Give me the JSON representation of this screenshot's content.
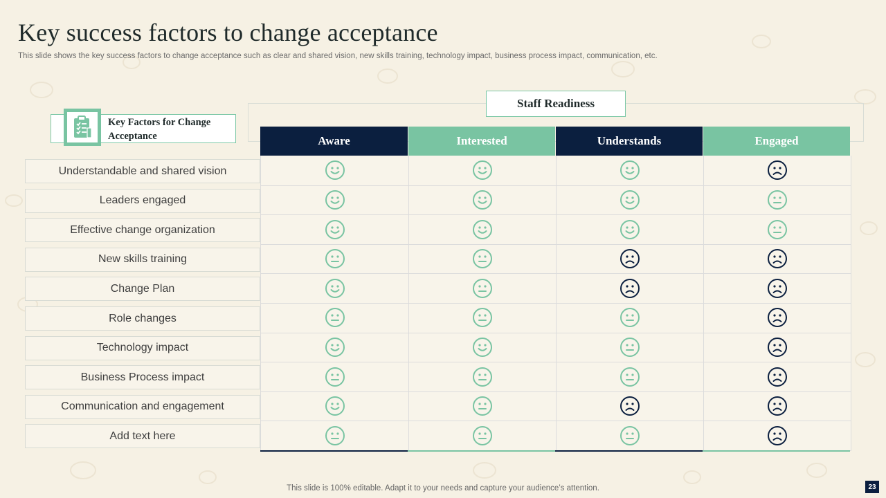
{
  "slide": {
    "title": "Key success factors to change acceptance",
    "subtitle": "This slide shows the key success factors to change acceptance such as clear and shared vision, new skills training, technology impact, business process impact, communication, etc.",
    "footer": "This slide is 100% editable. Adapt it to your needs and capture your audience’s attention.",
    "page_number": "23"
  },
  "staff_readiness": {
    "label": "Staff Readiness"
  },
  "key_factors": {
    "label": "Key Factors for Change Acceptance",
    "icon": "clipboard-checklist-icon"
  },
  "colors": {
    "navy": "#0b1f3f",
    "green": "#79c4a2",
    "background": "#f6f1e4"
  },
  "columns": [
    {
      "label": "Aware",
      "color": "#0b1f3f"
    },
    {
      "label": "Interested",
      "color": "#79c4a2"
    },
    {
      "label": "Understands",
      "color": "#0b1f3f"
    },
    {
      "label": "Engaged",
      "color": "#79c4a2"
    }
  ],
  "rows": [
    {
      "label": "Understandable and shared vision",
      "faces": [
        "happy",
        "happy",
        "happy",
        "sad"
      ]
    },
    {
      "label": "Leaders engaged",
      "faces": [
        "happy",
        "happy",
        "happy",
        "neutral"
      ]
    },
    {
      "label": "Effective change organization",
      "faces": [
        "happy",
        "happy",
        "happy",
        "neutral"
      ]
    },
    {
      "label": "New skills training",
      "faces": [
        "neutral",
        "neutral",
        "sad",
        "sad"
      ]
    },
    {
      "label": "Change Plan",
      "faces": [
        "happy",
        "neutral",
        "sad",
        "sad"
      ]
    },
    {
      "label": "Role changes",
      "faces": [
        "neutral",
        "neutral",
        "neutral",
        "sad"
      ]
    },
    {
      "label": "Technology  impact",
      "faces": [
        "happy",
        "happy",
        "neutral",
        "sad"
      ]
    },
    {
      "label": "Business Process impact",
      "faces": [
        "neutral",
        "neutral",
        "neutral",
        "sad"
      ]
    },
    {
      "label": "Communication and engagement",
      "faces": [
        "happy",
        "neutral",
        "sad",
        "sad"
      ]
    },
    {
      "label": "Add text here",
      "faces": [
        "neutral",
        "neutral",
        "neutral",
        "sad"
      ]
    }
  ]
}
